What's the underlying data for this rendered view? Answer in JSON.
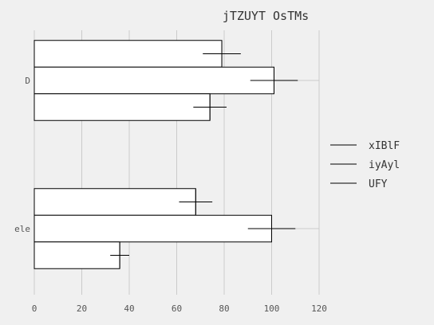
{
  "chart_data": {
    "type": "bar",
    "orientation": "horizontal",
    "title": "jTZUYT OsTMs",
    "xlabel": "",
    "ylabel": "",
    "categories": [
      "D",
      "ele"
    ],
    "xlim": [
      0,
      120
    ],
    "xticks": [
      0,
      20,
      40,
      60,
      80,
      100,
      120
    ],
    "grid": true,
    "legend_position": "right",
    "series": [
      {
        "name": "xIBlF",
        "values": [
          79,
          68
        ],
        "errors": [
          8,
          7
        ]
      },
      {
        "name": "iyAyl",
        "values": [
          101,
          100
        ],
        "errors": [
          10,
          10
        ]
      },
      {
        "name": "UFY",
        "values": [
          74,
          36
        ],
        "errors": [
          7,
          4
        ]
      }
    ],
    "colors": {
      "background": "#f0f0f0",
      "bar_fill": "#ffffff",
      "bar_edge": "#000000",
      "grid": "#cbcbcb",
      "errorbar": "#000000"
    }
  }
}
